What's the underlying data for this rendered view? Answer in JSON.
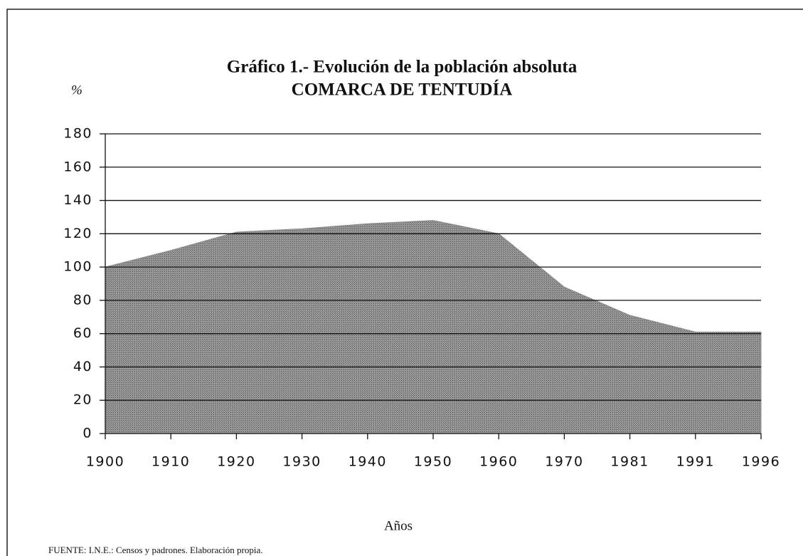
{
  "chart_data": {
    "type": "area",
    "title": "Gráfico 1.- Evolución de la población absoluta",
    "subtitle": "COMARCA DE TENTUDÍA",
    "y_label": "%",
    "x_label": "Años",
    "source": "FUENTE: I.N.E.: Censos y padrones. Elaboración propia.",
    "categories": [
      "1900",
      "1910",
      "1920",
      "1930",
      "1940",
      "1950",
      "1960",
      "1970",
      "1981",
      "1991",
      "1996"
    ],
    "values": [
      100,
      110,
      121,
      123,
      126,
      128,
      120,
      88,
      71,
      61,
      61
    ],
    "color": "#8c8c8c",
    "ylim": [
      0,
      180
    ],
    "yticks": [
      0,
      20,
      40,
      60,
      80,
      100,
      120,
      140,
      160,
      180
    ],
    "grid": true
  }
}
